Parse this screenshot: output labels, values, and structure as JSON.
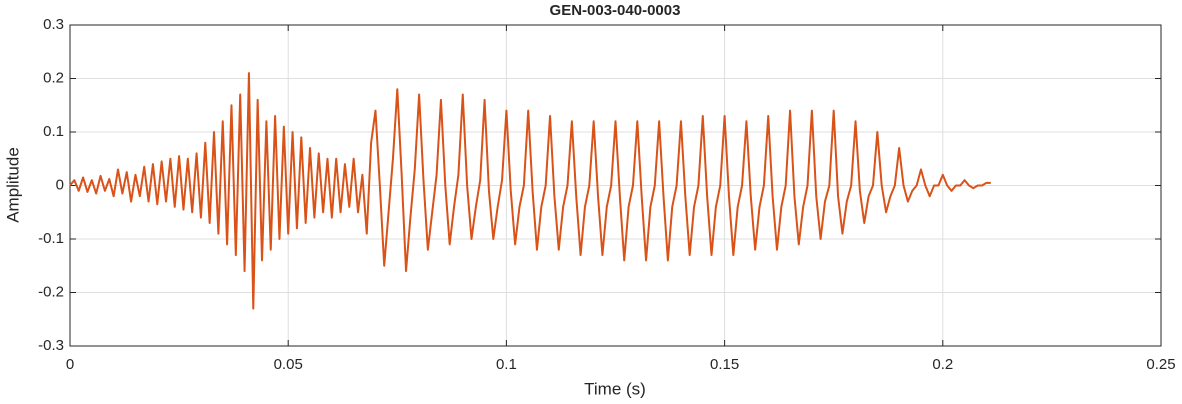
{
  "chart_data": {
    "type": "line",
    "title": "GEN-003-040-0003",
    "x_label": "Time (s)",
    "y_label": "Amplitude",
    "color": "#d95319",
    "grid": true,
    "xlim": [
      0,
      0.25
    ],
    "ylim": [
      -0.3,
      0.3
    ],
    "xticks": [
      0,
      0.05,
      0.1,
      0.15,
      0.2,
      0.25
    ],
    "yticks": [
      -0.3,
      -0.2,
      -0.1,
      0,
      0.1,
      0.2,
      0.3
    ],
    "x": [
      0,
      0.001,
      0.002,
      0.003,
      0.004,
      0.005,
      0.006,
      0.007,
      0.008,
      0.009,
      0.01,
      0.011,
      0.012,
      0.013,
      0.014,
      0.015,
      0.016,
      0.017,
      0.018,
      0.019,
      0.02,
      0.021,
      0.022,
      0.023,
      0.024,
      0.025,
      0.026,
      0.027,
      0.028,
      0.029,
      0.03,
      0.031,
      0.032,
      0.033,
      0.034,
      0.035,
      0.036,
      0.037,
      0.038,
      0.039,
      0.04,
      0.041,
      0.042,
      0.043,
      0.044,
      0.045,
      0.046,
      0.047,
      0.048,
      0.049,
      0.05,
      0.051,
      0.052,
      0.053,
      0.054,
      0.055,
      0.056,
      0.057,
      0.058,
      0.059,
      0.06,
      0.061,
      0.062,
      0.063,
      0.064,
      0.065,
      0.066,
      0.067,
      0.068,
      0.069,
      0.07,
      0.071,
      0.072,
      0.073,
      0.074,
      0.075,
      0.076,
      0.077,
      0.078,
      0.079,
      0.08,
      0.081,
      0.082,
      0.083,
      0.084,
      0.085,
      0.086,
      0.087,
      0.088,
      0.089,
      0.09,
      0.091,
      0.092,
      0.093,
      0.094,
      0.095,
      0.096,
      0.097,
      0.098,
      0.099,
      0.1,
      0.101,
      0.102,
      0.103,
      0.104,
      0.105,
      0.106,
      0.107,
      0.108,
      0.109,
      0.11,
      0.111,
      0.112,
      0.113,
      0.114,
      0.115,
      0.116,
      0.117,
      0.118,
      0.119,
      0.12,
      0.121,
      0.122,
      0.123,
      0.124,
      0.125,
      0.126,
      0.127,
      0.128,
      0.129,
      0.13,
      0.131,
      0.132,
      0.133,
      0.134,
      0.135,
      0.136,
      0.137,
      0.138,
      0.139,
      0.14,
      0.141,
      0.142,
      0.143,
      0.144,
      0.145,
      0.146,
      0.147,
      0.148,
      0.149,
      0.15,
      0.151,
      0.152,
      0.153,
      0.154,
      0.155,
      0.156,
      0.157,
      0.158,
      0.159,
      0.16,
      0.161,
      0.162,
      0.163,
      0.164,
      0.165,
      0.166,
      0.167,
      0.168,
      0.169,
      0.17,
      0.171,
      0.172,
      0.173,
      0.174,
      0.175,
      0.176,
      0.177,
      0.178,
      0.179,
      0.18,
      0.181,
      0.182,
      0.183,
      0.184,
      0.185,
      0.186,
      0.187,
      0.188,
      0.189,
      0.19,
      0.191,
      0.192,
      0.193,
      0.194,
      0.195,
      0.196,
      0.197,
      0.198,
      0.199,
      0.2,
      0.201,
      0.202,
      0.203,
      0.204,
      0.205,
      0.206,
      0.207,
      0.208,
      0.209,
      0.21,
      0.211
    ],
    "values": [
      0,
      0.01,
      -0.01,
      0.015,
      -0.012,
      0.01,
      -0.015,
      0.018,
      -0.01,
      0.012,
      -0.02,
      0.03,
      -0.015,
      0.025,
      -0.03,
      0.02,
      -0.02,
      0.035,
      -0.03,
      0.04,
      -0.035,
      0.045,
      -0.03,
      0.05,
      -0.04,
      0.055,
      -0.045,
      0.05,
      -0.05,
      0.06,
      -0.06,
      0.08,
      -0.07,
      0.1,
      -0.09,
      0.12,
      -0.11,
      0.15,
      -0.13,
      0.17,
      -0.16,
      0.21,
      -0.23,
      0.16,
      -0.14,
      0.12,
      -0.12,
      0.13,
      -0.1,
      0.11,
      -0.09,
      0.1,
      -0.08,
      0.09,
      -0.07,
      0.07,
      -0.06,
      0.06,
      -0.05,
      0.05,
      -0.06,
      0.05,
      -0.05,
      0.04,
      -0.04,
      0.05,
      -0.05,
      0.02,
      -0.09,
      0.08,
      0.14,
      0,
      -0.15,
      -0.05,
      0.05,
      0.18,
      0.02,
      -0.16,
      -0.06,
      0.03,
      0.17,
      0.01,
      -0.12,
      -0.05,
      0.02,
      0.16,
      0,
      -0.11,
      -0.04,
      0.02,
      0.17,
      0,
      -0.1,
      -0.04,
      0.01,
      0.16,
      -0.01,
      -0.1,
      -0.04,
      0.01,
      0.14,
      -0.01,
      -0.11,
      -0.04,
      0,
      0.14,
      -0.01,
      -0.12,
      -0.04,
      0,
      0.13,
      -0.02,
      -0.12,
      -0.04,
      0,
      0.12,
      -0.02,
      -0.13,
      -0.04,
      0,
      0.12,
      -0.02,
      -0.13,
      -0.04,
      0,
      0.12,
      -0.02,
      -0.14,
      -0.04,
      0,
      0.12,
      -0.02,
      -0.14,
      -0.04,
      0,
      0.12,
      -0.02,
      -0.14,
      -0.04,
      0,
      0.12,
      -0.02,
      -0.13,
      -0.04,
      0,
      0.13,
      -0.02,
      -0.13,
      -0.04,
      0,
      0.13,
      -0.02,
      -0.13,
      -0.04,
      0,
      0.12,
      -0.02,
      -0.12,
      -0.04,
      0,
      0.13,
      -0.02,
      -0.12,
      -0.04,
      0,
      0.14,
      -0.02,
      -0.11,
      -0.04,
      0,
      0.14,
      -0.02,
      -0.1,
      -0.03,
      0,
      0.14,
      -0.02,
      -0.09,
      -0.03,
      0,
      0.12,
      -0.01,
      -0.07,
      -0.02,
      0,
      0.1,
      0,
      -0.05,
      -0.02,
      0,
      0.07,
      0,
      -0.03,
      -0.01,
      0,
      0.03,
      0,
      -0.02,
      0,
      0,
      0.02,
      0,
      -0.01,
      0,
      0,
      0.01,
      0,
      -0.005,
      0,
      0,
      0.005,
      0.005
    ]
  }
}
